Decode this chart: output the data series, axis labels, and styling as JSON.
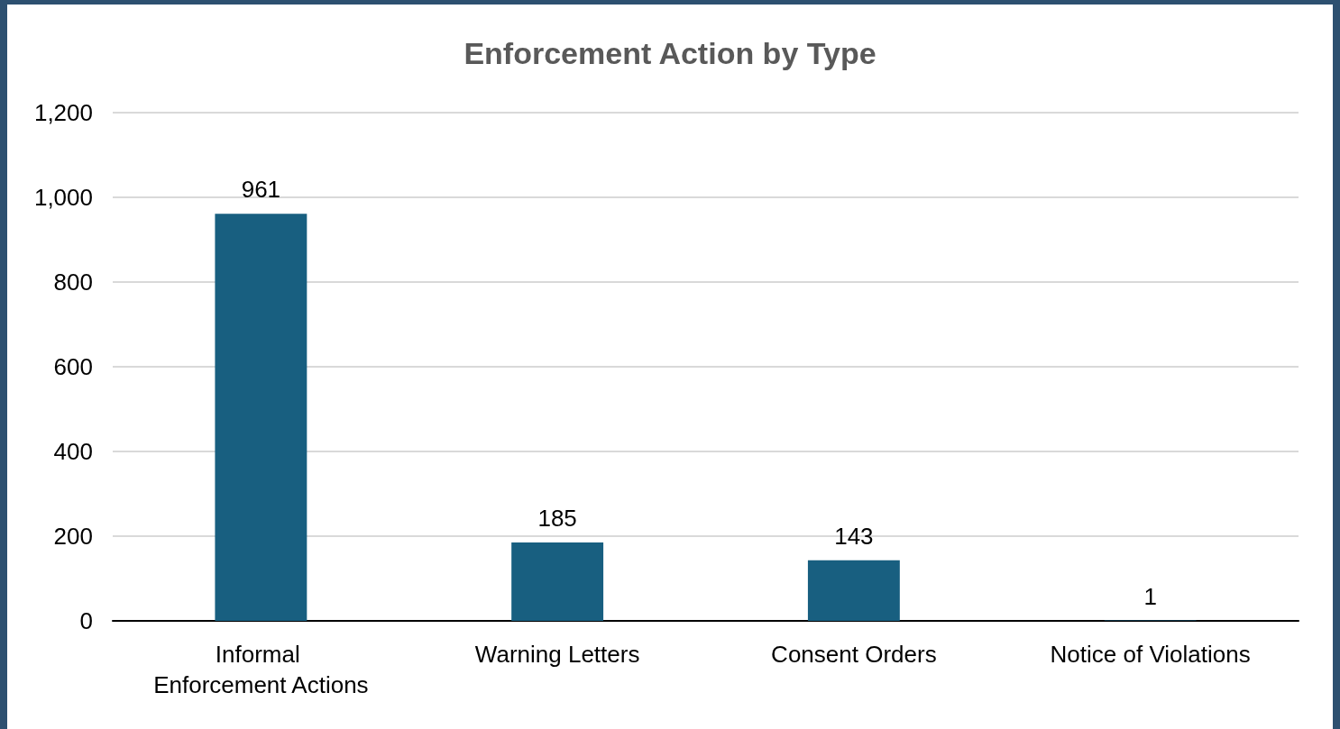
{
  "chart_data": {
    "type": "bar",
    "title": "Enforcement Action by Type",
    "categories": [
      "Informal Enforcement Actions",
      "Warning Letters",
      "Consent Orders",
      "Notice of Violations"
    ],
    "values": [
      961,
      185,
      143,
      1
    ],
    "color": "#185f80",
    "ylim": [
      0,
      1200
    ],
    "yticks": [
      0,
      200,
      400,
      600,
      800,
      {
        "value": 1000,
        "label": "1,000"
      },
      {
        "value": 1200,
        "label": "1,200"
      }
    ],
    "grid": "y",
    "data_labels": true
  }
}
